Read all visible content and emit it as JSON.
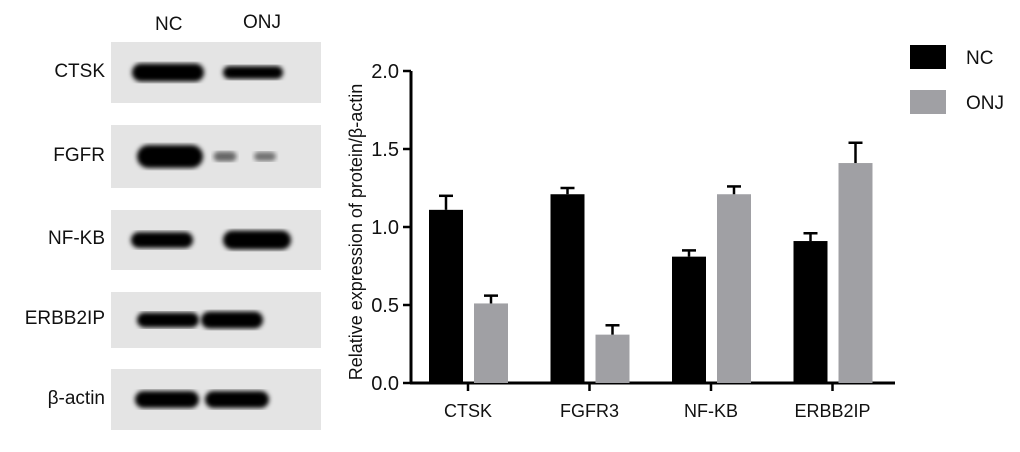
{
  "blot": {
    "lanes": [
      "NC",
      "ONJ"
    ],
    "rows": [
      {
        "label": "CTSK"
      },
      {
        "label": "FGFR"
      },
      {
        "label": "NF-KB"
      },
      {
        "label": "ERBB2IP"
      },
      {
        "label": "β-actin"
      }
    ]
  },
  "chart_data": {
    "type": "bar",
    "categories": [
      "CTSK",
      "FGFR3",
      "NF-KB",
      "ERBB2IP"
    ],
    "series": [
      {
        "name": "NC",
        "color": "#000000",
        "values": [
          1.11,
          1.21,
          0.81,
          0.91
        ],
        "error": [
          0.09,
          0.04,
          0.04,
          0.05
        ]
      },
      {
        "name": "ONJ",
        "color": "#a0a0a4",
        "values": [
          0.51,
          0.31,
          1.21,
          1.41
        ],
        "error": [
          0.05,
          0.06,
          0.05,
          0.13
        ]
      }
    ],
    "ylabel": "Relative expression of protein/β-actin",
    "ylim": [
      0,
      2.0
    ],
    "yticks": [
      "0.0",
      "0.5",
      "1.0",
      "1.5",
      "2.0"
    ],
    "legend": "top-right",
    "grid": false
  }
}
